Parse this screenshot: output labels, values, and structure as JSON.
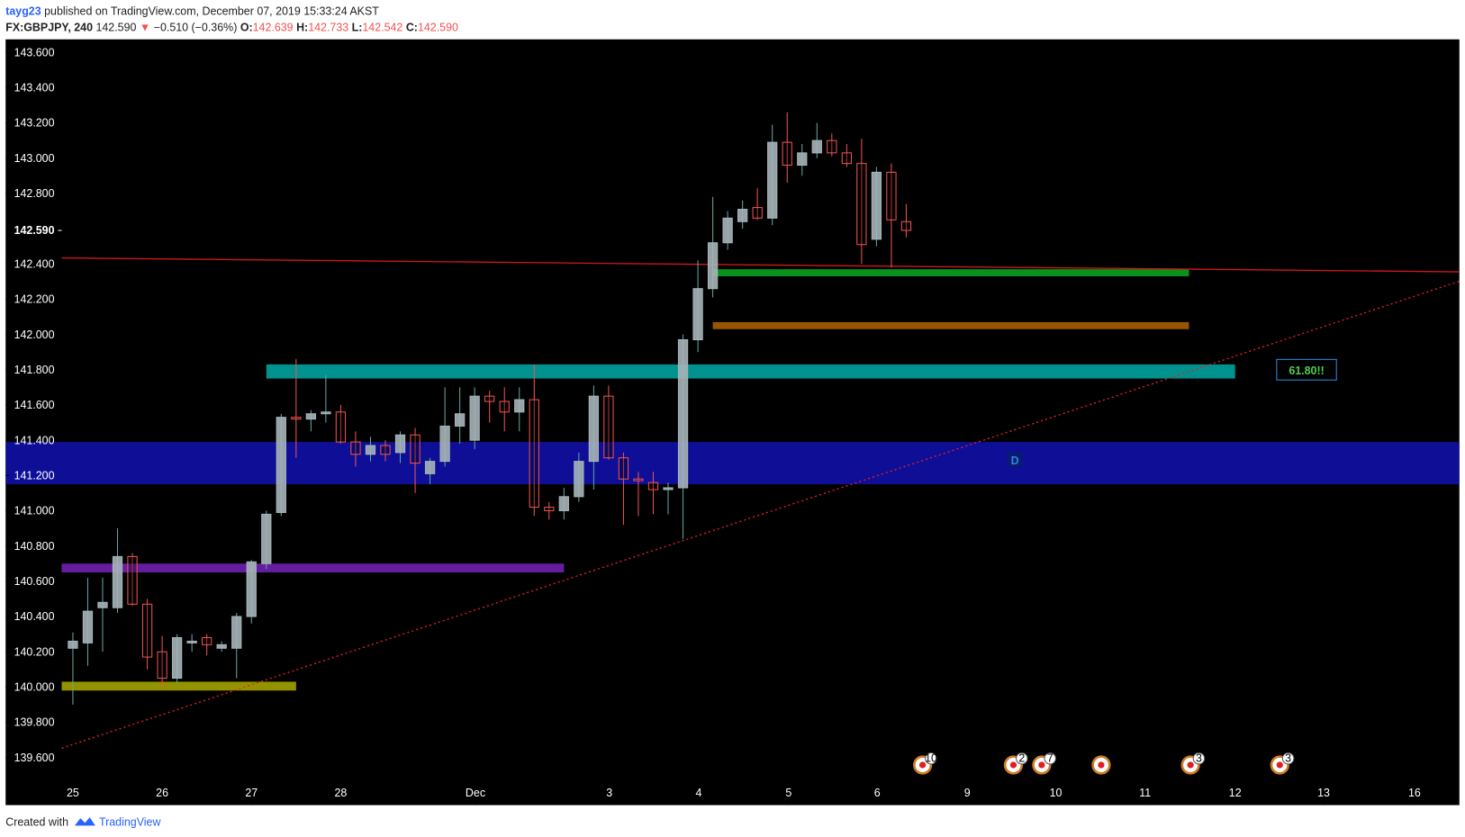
{
  "chart_data": {
    "type": "candlestick",
    "header": {
      "publisher": "tayg23",
      "published": "published on TradingView.com, December 07, 2019 15:33:24 AKST",
      "symbol": "FX:GBPJPY, 240",
      "last": "142.590",
      "change": "−0.510 (−0.36%)",
      "open_label": "O:",
      "open": "142.639",
      "high_label": "H:",
      "high": "142.733",
      "low_label": "L:",
      "low": "142.542",
      "close_label": "C:",
      "close": "142.590"
    },
    "open": [
      140.22,
      140.25,
      140.45,
      140.45,
      140.74,
      140.47,
      140.2,
      140.05,
      140.25,
      140.28,
      140.22,
      140.22,
      140.4,
      140.7,
      140.99,
      141.53,
      141.52,
      141.55,
      141.56,
      141.39,
      141.32,
      141.37,
      141.33,
      141.43,
      141.21,
      141.28,
      141.48,
      141.4,
      141.65,
      141.62,
      141.56,
      141.63,
      141.02,
      141.0,
      141.08,
      141.28,
      141.65,
      141.3,
      141.18,
      141.16,
      141.12,
      141.13,
      141.97,
      142.26,
      142.52,
      142.64,
      142.72,
      142.66,
      143.09,
      142.96,
      143.03,
      143.1,
      143.03,
      142.97,
      142.54,
      142.92,
      142.64
    ],
    "high": [
      140.31,
      140.62,
      140.62,
      140.9,
      140.76,
      140.5,
      140.29,
      140.3,
      140.3,
      140.3,
      140.26,
      140.42,
      140.72,
      141.0,
      141.55,
      141.86,
      141.57,
      141.77,
      141.6,
      141.45,
      141.42,
      141.4,
      141.45,
      141.47,
      141.3,
      141.7,
      141.7,
      141.7,
      141.68,
      141.7,
      141.7,
      141.83,
      141.05,
      141.13,
      141.33,
      141.71,
      141.71,
      141.33,
      141.22,
      141.22,
      141.16,
      142.0,
      142.42,
      142.78,
      142.7,
      142.76,
      142.83,
      143.19,
      143.26,
      143.08,
      143.2,
      143.14,
      143.08,
      143.11,
      142.95,
      142.97,
      142.74
    ],
    "low": [
      139.9,
      140.12,
      140.2,
      140.42,
      140.46,
      140.1,
      140.0,
      140.02,
      140.2,
      140.18,
      140.2,
      140.05,
      140.36,
      140.67,
      140.97,
      141.3,
      141.45,
      141.5,
      141.38,
      141.25,
      141.28,
      141.28,
      141.27,
      141.1,
      141.15,
      141.25,
      141.38,
      141.35,
      141.5,
      141.45,
      141.45,
      140.97,
      140.95,
      140.95,
      141.05,
      141.12,
      141.29,
      140.92,
      140.97,
      140.98,
      140.98,
      140.84,
      141.9,
      142.21,
      142.48,
      142.6,
      142.65,
      142.62,
      142.86,
      142.9,
      143.0,
      143.01,
      142.95,
      142.4,
      142.5,
      142.38,
      142.55
    ],
    "close": [
      140.26,
      140.43,
      140.48,
      140.74,
      140.47,
      140.17,
      140.05,
      140.28,
      140.26,
      140.24,
      140.24,
      140.4,
      140.71,
      140.98,
      141.53,
      141.52,
      141.55,
      141.56,
      141.39,
      141.32,
      141.37,
      141.32,
      141.43,
      141.27,
      141.28,
      141.48,
      141.55,
      141.65,
      141.62,
      141.56,
      141.63,
      141.02,
      141.0,
      141.08,
      141.28,
      141.65,
      141.3,
      141.18,
      141.17,
      141.12,
      141.13,
      141.97,
      142.26,
      142.52,
      142.66,
      142.71,
      142.66,
      143.09,
      142.96,
      143.03,
      143.1,
      143.03,
      142.97,
      142.51,
      142.92,
      142.65,
      142.59
    ],
    "up_color": "#a6b4b8",
    "down_color": "#ef5350",
    "xlim": [
      -4.52,
      93.17
    ],
    "ylim": [
      139.33,
      143.674
    ],
    "xticks": [
      {
        "value": 0,
        "label": "25"
      },
      {
        "value": 6,
        "label": "26"
      },
      {
        "value": 12,
        "label": "27"
      },
      {
        "value": 18,
        "label": "28"
      },
      {
        "value": 27.05,
        "label": "Dec"
      },
      {
        "value": 36.05,
        "label": "3"
      },
      {
        "value": 42.05,
        "label": "4"
      },
      {
        "value": 48.1,
        "label": "5"
      },
      {
        "value": 54.05,
        "label": "6"
      },
      {
        "value": 60.1,
        "label": "9"
      },
      {
        "value": 66.05,
        "label": "10"
      },
      {
        "value": 72.05,
        "label": "11"
      },
      {
        "value": 78.1,
        "label": "12"
      },
      {
        "value": 84.05,
        "label": "13"
      },
      {
        "value": 90.15,
        "label": "16"
      }
    ],
    "yticks": [
      {
        "value": 139.6,
        "label": "139.600"
      },
      {
        "value": 139.8,
        "label": "139.800"
      },
      {
        "value": 140.0,
        "label": "140.000"
      },
      {
        "value": 140.2,
        "label": "140.200"
      },
      {
        "value": 140.4,
        "label": "140.400"
      },
      {
        "value": 140.6,
        "label": "140.600"
      },
      {
        "value": 140.8,
        "label": "140.800"
      },
      {
        "value": 141.0,
        "label": "141.000"
      },
      {
        "value": 141.2,
        "label": "141.200"
      },
      {
        "value": 141.4,
        "label": "141.400"
      },
      {
        "value": 141.6,
        "label": "141.600"
      },
      {
        "value": 141.8,
        "label": "141.800"
      },
      {
        "value": 142.0,
        "label": "142.000"
      },
      {
        "value": 142.2,
        "label": "142.200"
      },
      {
        "value": 142.4,
        "label": "142.400"
      },
      {
        "value": 142.8,
        "label": "142.800"
      },
      {
        "value": 143.0,
        "label": "143.000"
      },
      {
        "value": 143.2,
        "label": "143.200"
      },
      {
        "value": 143.4,
        "label": "143.400"
      },
      {
        "value": 143.6,
        "label": "143.600"
      }
    ],
    "last_price": {
      "value": 142.59,
      "label": "142.590"
    },
    "zones": [
      {
        "color": "#1010b0",
        "price": [
          141.15,
          141.39
        ],
        "x": [
          -4.52,
          93.17
        ]
      },
      {
        "color": "#009a96",
        "price": [
          141.75,
          141.83
        ],
        "x": [
          13.0,
          78.1
        ]
      },
      {
        "color": "#6a1fa8",
        "price": [
          140.65,
          140.7
        ],
        "x": [
          -0.75,
          33.0
        ]
      },
      {
        "color": "#9b9b00",
        "price": [
          139.98,
          140.03
        ],
        "x": [
          -0.75,
          15.0
        ]
      },
      {
        "color": "#0a9a1a",
        "price": [
          142.33,
          142.37
        ],
        "x": [
          43.0,
          75.0
        ]
      },
      {
        "color": "#a05a00",
        "price": [
          142.03,
          142.07
        ],
        "x": [
          43.0,
          75.0
        ]
      }
    ],
    "lines": [
      {
        "color": "#d01818",
        "style": "solid",
        "x": [
          -0.75,
          93.17
        ],
        "y": [
          142.434,
          142.355
        ]
      },
      {
        "color": "#e02020",
        "style": "dotted",
        "x": [
          -0.75,
          93.17
        ],
        "y": [
          139.653,
          142.302
        ]
      }
    ],
    "annotations": [
      {
        "text": "61.80!!",
        "x": 82.9,
        "y": 141.8,
        "color": "#4fcf4f"
      },
      {
        "text": "D",
        "x": 63.3,
        "y": 141.29,
        "color": "#2a8ae0"
      }
    ],
    "events": [
      {
        "x": 57.1,
        "label": "10"
      },
      {
        "x": 63.2,
        "label": "2"
      },
      {
        "x": 65.1,
        "label": "7"
      },
      {
        "x": 69.1
      },
      {
        "x": 75.1,
        "label": "3"
      },
      {
        "x": 81.1,
        "label": "3"
      }
    ],
    "footer": {
      "created": "Created with",
      "brand": "TradingView"
    }
  }
}
